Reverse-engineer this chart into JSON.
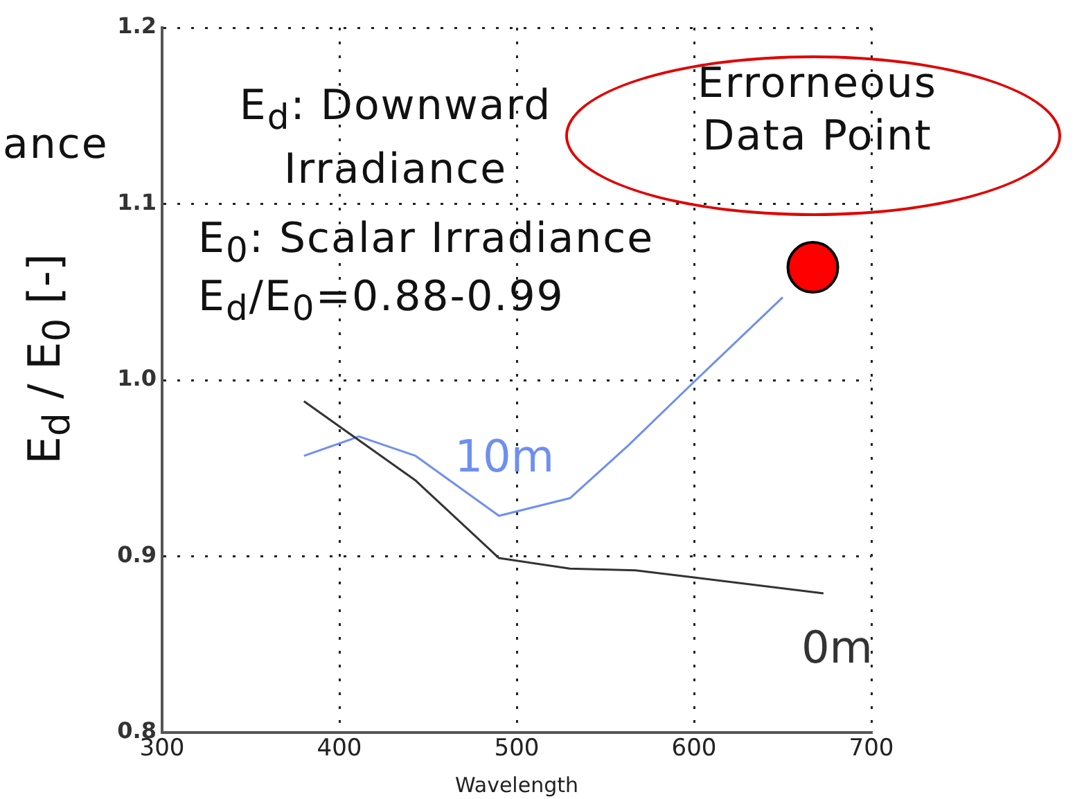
{
  "chart_data": {
    "type": "line",
    "xlabel": "Wavelength",
    "ylabel": "E$_{d}$ / E$_{0}$ [-]",
    "xlim": [
      300,
      700
    ],
    "xticks": [
      300,
      400,
      500,
      600,
      700
    ],
    "ylim": [
      0.8,
      1.2
    ],
    "yticks": [
      0.8,
      0.9,
      {
        "value": 1,
        "label": "1.0"
      },
      1.1,
      1.2
    ],
    "grid": true,
    "legend": false,
    "marker": "none",
    "line_style": "solid",
    "series": [
      {
        "name": "0m",
        "color": "#333333",
        "x": [
          380,
          443,
          490,
          530,
          567,
          600,
          673
        ],
        "values": [
          0.988,
          0.943,
          0.899,
          0.893,
          0.892,
          0.888,
          0.879
        ]
      },
      {
        "name": "10m",
        "color": "#6f8ff0",
        "x": [
          380,
          411,
          443,
          490,
          530,
          563,
          600,
          650
        ],
        "values": [
          0.957,
          0.968,
          0.957,
          0.923,
          0.933,
          0.963,
          0.999,
          1.047
        ]
      },
      {
        "type": "scatter",
        "marker": "circle",
        "color": "#ff0000",
        "x": [
          667
        ],
        "values": [
          1.064
        ]
      }
    ],
    "annotations": [
      "E$_{d}$: Downward Irradiance",
      "E$_{0}$: Scalar Irradiance",
      "E$_{d}$/E$_{0}$=0.88-0.99",
      "Errorneous Data Point",
      "ance"
    ]
  }
}
